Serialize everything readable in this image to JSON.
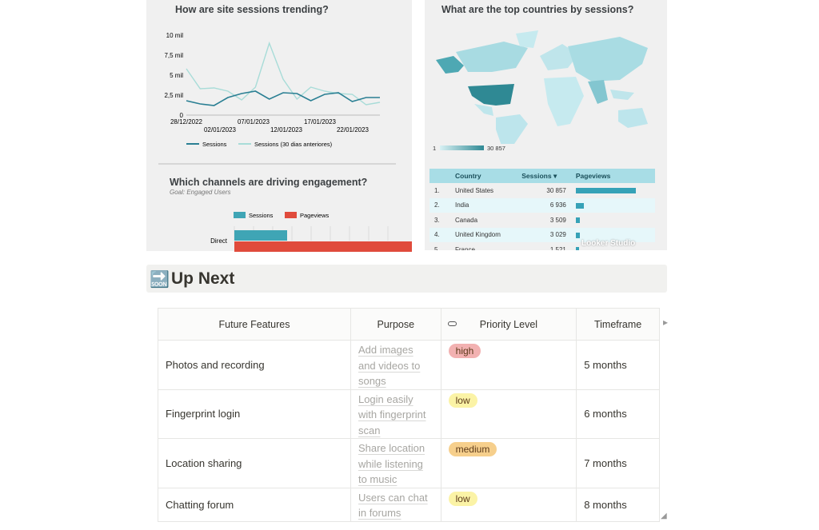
{
  "dashboard": {
    "sessions_chart": {
      "title": "How are site sessions trending?",
      "y_ticks": [
        "10 mil",
        "7,5 mil",
        "5 mil",
        "2,5 mil",
        "0"
      ],
      "x_ticks_row1": [
        "28/12/2022",
        "07/01/2023",
        "17/01/2023"
      ],
      "x_ticks_row2": [
        "02/01/2023",
        "12/01/2023",
        "22/01/2023"
      ],
      "legend": [
        "Sessions",
        "Sessions (30 dias anteriores)"
      ],
      "colors": {
        "current": "#2a7f93",
        "previous": "#a8dcd8"
      }
    },
    "channels_chart": {
      "title": "Which channels are driving engagement?",
      "subtitle": "Goal: Engaged Users",
      "legend": [
        "Sessions",
        "Pageviews"
      ],
      "category": "Direct",
      "colors": {
        "sessions": "#3fa5b5",
        "pageviews": "#e04b3c"
      }
    },
    "map_chart": {
      "title": "What are the top countries by sessions?",
      "scale_min": "1",
      "scale_max": "30 857"
    },
    "countries_table": {
      "headers": [
        "Country",
        "Sessions ▾",
        "Pageviews"
      ],
      "rows": [
        {
          "rank": "1.",
          "country": "United States",
          "sessions": "30 857",
          "pv_frac": 1.0
        },
        {
          "rank": "2.",
          "country": "India",
          "sessions": "6 936",
          "pv_frac": 0.13
        },
        {
          "rank": "3.",
          "country": "Canada",
          "sessions": "3 509",
          "pv_frac": 0.07
        },
        {
          "rank": "4.",
          "country": "United Kingdom",
          "sessions": "3 029",
          "pv_frac": 0.07
        },
        {
          "rank": "5.",
          "country": "France",
          "sessions": "1 521",
          "pv_frac": 0.04
        }
      ],
      "watermark": "Looker Studio"
    }
  },
  "chart_data": [
    {
      "type": "line",
      "title": "How are site sessions trending?",
      "x": [
        "28/12/2022",
        "30/12/2022",
        "01/01/2023",
        "03/01/2023",
        "05/01/2023",
        "07/01/2023",
        "09/01/2023",
        "11/01/2023",
        "13/01/2023",
        "15/01/2023",
        "17/01/2023",
        "19/01/2023",
        "21/01/2023",
        "23/01/2023",
        "25/01/2023"
      ],
      "ylim": [
        0,
        10000
      ],
      "series": [
        {
          "name": "Sessions",
          "values": [
            1800,
            1400,
            1200,
            2200,
            2700,
            3000,
            2000,
            2800,
            2700,
            1800,
            2600,
            2800,
            1700,
            2200,
            2200
          ]
        },
        {
          "name": "Sessions (30 dias anteriores)",
          "values": [
            5800,
            3300,
            3400,
            3000,
            1900,
            3500,
            9000,
            4500,
            2000,
            3500,
            3000,
            2700,
            2600,
            1300,
            1600
          ]
        }
      ]
    },
    {
      "type": "bar",
      "title": "Which channels are driving engagement?",
      "categories": [
        "Direct"
      ],
      "series": [
        {
          "name": "Sessions",
          "values": [
            0.23
          ]
        },
        {
          "name": "Pageviews",
          "values": [
            1.0
          ]
        }
      ]
    }
  ],
  "section": {
    "icon": "🔜",
    "title": "Up Next"
  },
  "features_table": {
    "headers": [
      "Future Features",
      "Purpose",
      "Priority Level",
      "Timeframe"
    ],
    "rows": [
      {
        "feature": "Photos and recording",
        "purpose": "Add images and videos to songs",
        "priority": "high",
        "priority_color": "#f2b1b1",
        "timeframe": "5 months"
      },
      {
        "feature": "Fingerprint login",
        "purpose": "Login easily with fingerprint scan",
        "priority": "low",
        "priority_color": "#fbf3a6",
        "timeframe": "6 months"
      },
      {
        "feature": "Location sharing",
        "purpose": "Share location while listening to music",
        "priority": "medium",
        "priority_color": "#f6cf8c",
        "timeframe": "7 months"
      },
      {
        "feature": "Chatting forum",
        "purpose": "Users can chat in forums",
        "priority": "low",
        "priority_color": "#fbf3a6",
        "timeframe": "8 months"
      }
    ]
  }
}
